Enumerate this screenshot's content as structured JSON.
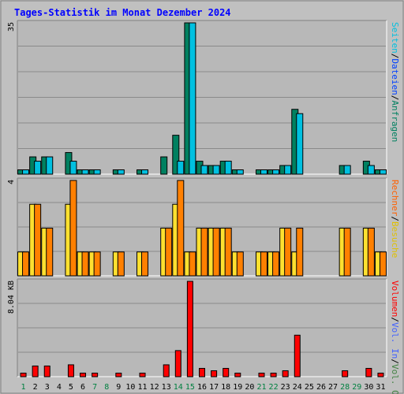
{
  "title": "Tages-Statistik im Monat Dezember 2024",
  "colors": {
    "background": "#c0c0c0",
    "plot_background": "#b8b8b8",
    "border_light": "#ffffff",
    "border_dark": "#808080",
    "gridline": "#8a8a8a",
    "title": "#0000ff",
    "day_weekday": "#000000",
    "day_weekend": "#008040",
    "anfragen": "#008060",
    "dateien": "#00c0e0",
    "seiten": "#00e0ff",
    "besuche": "#ffe030",
    "rechner": "#ff8000",
    "vol_out": "#408040",
    "vol_in": "#4060ff",
    "volumen": "#ff0000"
  },
  "legend": {
    "top": [
      {
        "label": "Anfragen",
        "color": "#008060"
      },
      {
        "label": "/",
        "color": "#000000"
      },
      {
        "label": "Dateien",
        "color": "#0040ff"
      },
      {
        "label": "/",
        "color": "#000000"
      },
      {
        "label": "Seiten",
        "color": "#00c0e0"
      }
    ],
    "middle": [
      {
        "label": "Besuche",
        "color": "#e0c000"
      },
      {
        "label": "/",
        "color": "#000000"
      },
      {
        "label": "Rechner",
        "color": "#ff6000"
      }
    ],
    "bottom": [
      {
        "label": "Vol. Out",
        "color": "#408040"
      },
      {
        "label": "/",
        "color": "#000000"
      },
      {
        "label": "Vol. In",
        "color": "#4060ff"
      },
      {
        "label": "/",
        "color": "#000000"
      },
      {
        "label": "Volumen",
        "color": "#ff0000"
      }
    ]
  },
  "chart_data": [
    {
      "type": "bar",
      "panel": "hits",
      "ymax_label": "35",
      "ylim": [
        0,
        35
      ],
      "categories": [
        "1",
        "2",
        "3",
        "4",
        "5",
        "6",
        "7",
        "8",
        "9",
        "10",
        "11",
        "12",
        "13",
        "14",
        "15",
        "16",
        "17",
        "18",
        "19",
        "20",
        "21",
        "22",
        "23",
        "24",
        "25",
        "26",
        "27",
        "28",
        "29",
        "30",
        "31"
      ],
      "weekend_days": [
        "1",
        "7",
        "8",
        "14",
        "15",
        "21",
        "22",
        "28",
        "29"
      ],
      "series": [
        {
          "name": "Anfragen",
          "values": [
            1,
            4,
            4,
            0,
            5,
            1,
            1,
            0,
            1,
            0,
            1,
            0,
            4,
            9,
            35,
            3,
            2,
            3,
            1,
            0,
            1,
            1,
            2,
            15,
            0,
            0,
            0,
            2,
            0,
            3,
            1
          ]
        },
        {
          "name": "Dateien",
          "values": [
            1,
            3,
            4,
            0,
            3,
            1,
            1,
            0,
            1,
            0,
            1,
            0,
            0,
            3,
            35,
            2,
            2,
            3,
            1,
            0,
            1,
            1,
            2,
            14,
            0,
            0,
            0,
            2,
            0,
            2,
            1
          ]
        },
        {
          "name": "Seiten",
          "values": [
            1,
            3,
            4,
            0,
            3,
            1,
            1,
            0,
            1,
            0,
            1,
            0,
            0,
            3,
            35,
            2,
            2,
            3,
            1,
            0,
            1,
            1,
            2,
            14,
            0,
            0,
            0,
            2,
            0,
            2,
            1
          ]
        }
      ]
    },
    {
      "type": "bar",
      "panel": "visits",
      "ymax_label": "4",
      "ylim": [
        0,
        4
      ],
      "categories": [
        "1",
        "2",
        "3",
        "4",
        "5",
        "6",
        "7",
        "8",
        "9",
        "10",
        "11",
        "12",
        "13",
        "14",
        "15",
        "16",
        "17",
        "18",
        "19",
        "20",
        "21",
        "22",
        "23",
        "24",
        "25",
        "26",
        "27",
        "28",
        "29",
        "30",
        "31"
      ],
      "series": [
        {
          "name": "Besuche",
          "values": [
            1,
            3,
            2,
            0,
            3,
            1,
            1,
            0,
            1,
            0,
            1,
            0,
            2,
            3,
            1,
            2,
            2,
            2,
            1,
            0,
            1,
            1,
            2,
            1,
            0,
            0,
            0,
            2,
            0,
            2,
            1
          ]
        },
        {
          "name": "Rechner",
          "values": [
            1,
            3,
            2,
            0,
            4,
            1,
            1,
            0,
            1,
            0,
            1,
            0,
            2,
            4,
            1,
            2,
            2,
            2,
            1,
            0,
            1,
            1,
            2,
            2,
            0,
            0,
            0,
            2,
            0,
            2,
            1
          ]
        }
      ]
    },
    {
      "type": "bar",
      "panel": "volume",
      "ymax_label": "8.04 KB",
      "ylim": [
        0,
        8.04
      ],
      "yunit": "KB",
      "categories": [
        "1",
        "2",
        "3",
        "4",
        "5",
        "6",
        "7",
        "8",
        "9",
        "10",
        "11",
        "12",
        "13",
        "14",
        "15",
        "16",
        "17",
        "18",
        "19",
        "20",
        "21",
        "22",
        "23",
        "24",
        "25",
        "26",
        "27",
        "28",
        "29",
        "30",
        "31"
      ],
      "series": [
        {
          "name": "Volumen",
          "values": [
            0.3,
            0.9,
            0.9,
            0,
            1,
            0.3,
            0.3,
            0,
            0.3,
            0,
            0.3,
            0,
            1,
            2.2,
            8.04,
            0.7,
            0.5,
            0.7,
            0.3,
            0,
            0.3,
            0.3,
            0.5,
            3.5,
            0,
            0,
            0,
            0.5,
            0,
            0.7,
            0.3
          ]
        }
      ]
    }
  ]
}
